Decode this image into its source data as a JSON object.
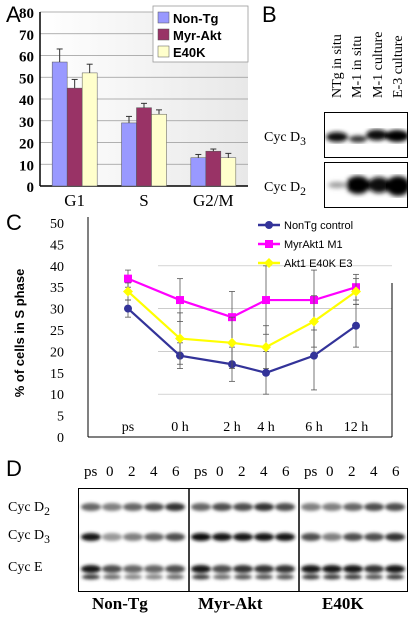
{
  "panels": {
    "a": "A",
    "b": "B",
    "c": "C",
    "d": "D"
  },
  "chart_data": [
    {
      "type": "bar",
      "panel": "A",
      "categories": [
        "G1",
        "S",
        "G2/M"
      ],
      "series": [
        {
          "name": "Non-Tg",
          "values": [
            57,
            29,
            13
          ],
          "errors": [
            6,
            3,
            1.5
          ],
          "color": "#9999ff"
        },
        {
          "name": "Myr-Akt",
          "values": [
            45,
            36,
            16
          ],
          "errors": [
            4,
            2,
            1
          ],
          "color": "#993366"
        },
        {
          "name": "E40K",
          "values": [
            52,
            33,
            13
          ],
          "errors": [
            4,
            2,
            2
          ],
          "color": "#ffffcc"
        }
      ],
      "yticks": [
        "0",
        "10",
        "20",
        "30",
        "40",
        "50",
        "60",
        "70",
        "80"
      ],
      "ylim": [
        0,
        80
      ],
      "legend": "top-right"
    },
    {
      "type": "line",
      "panel": "C",
      "categories": [
        "ps",
        "0 h",
        "2 h",
        "4 h",
        "6 h",
        "12 h"
      ],
      "ylabel": "% of cells in S phase",
      "yticks": [
        "0",
        "5",
        "10",
        "15",
        "20",
        "25",
        "30",
        "35",
        "40",
        "45",
        "50"
      ],
      "ylim": [
        0,
        50
      ],
      "legend": "top-right",
      "series": [
        {
          "name": "NonTg control",
          "values": [
            30,
            19,
            17,
            15,
            19,
            26
          ],
          "errors": [
            2,
            3,
            4,
            5,
            8,
            5
          ],
          "color": "#333399",
          "marker": "circle"
        },
        {
          "name": "MyrAkt1 M1",
          "values": [
            37,
            32,
            28,
            32,
            32,
            35
          ],
          "errors": [
            2,
            5,
            6,
            8,
            7,
            3
          ],
          "color": "#ff00ff",
          "marker": "square"
        },
        {
          "name": "Akt1 E40K E3",
          "values": [
            34,
            23,
            22,
            21,
            27,
            34
          ],
          "errors": [
            2,
            6,
            6,
            5,
            6,
            3
          ],
          "color": "#ffff00",
          "marker": "diamond"
        }
      ]
    }
  ],
  "panel_b": {
    "lanes": [
      "NTg  in situ",
      "M-1 in situ",
      "M-1 culture",
      "E-3  culture"
    ],
    "rows": [
      {
        "label": "Cyc D",
        "sub": "3"
      },
      {
        "label": "Cyc D",
        "sub": "2"
      }
    ]
  },
  "panel_d": {
    "groups": [
      {
        "name": "Non-Tg",
        "lanes": [
          "ps",
          "0",
          "2",
          "4",
          "6"
        ]
      },
      {
        "name": "Myr-Akt",
        "lanes": [
          "ps",
          "0",
          "2",
          "4",
          "6"
        ]
      },
      {
        "name": "E40K",
        "lanes": [
          "ps",
          "0",
          "2",
          "4",
          "6"
        ]
      }
    ],
    "rows": [
      {
        "label": "Cyc D",
        "sub": "2"
      },
      {
        "label": "Cyc D",
        "sub": "3"
      },
      {
        "label": "Cyc E",
        "sub": ""
      }
    ]
  }
}
